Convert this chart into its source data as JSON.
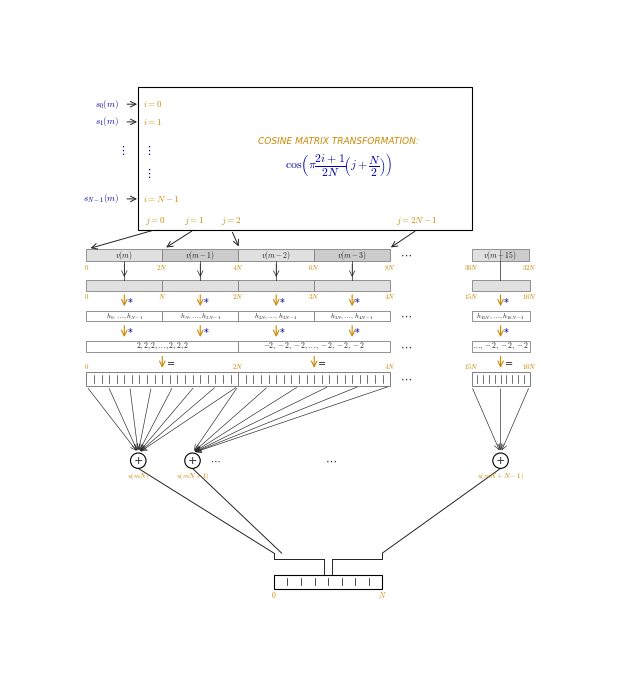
{
  "fig_width": 6.41,
  "fig_height": 6.95,
  "bg_color": "#ffffff",
  "cosine_title": "COSINE MATRIX TRANSFORMATION:",
  "orange_color": "#cc8800",
  "blue_color": "#0000aa",
  "dark_color": "#222222",
  "gray_light": "#e0e0e0",
  "gray_med": "#cccccc",
  "v_labels": [
    "$v(m)$",
    "$v(m-1)$",
    "$v(m-2)$",
    "$v(m-3)$",
    "$v(m-15)$"
  ],
  "h_labels": [
    "$h_0,\\ldots,h_{N-1}$",
    "$h_N,\\ldots,h_{2N-1}$",
    "$h_{2N},\\ldots,h_{3N-1}$",
    "$h_{3N},\\ldots,h_{4N-1}$",
    "$h_{15N},\\ldots,h_{16N-1}$"
  ],
  "twos_left": "$2,2,2,\\ldots,2,2,2$",
  "twos_right_left": "$-2,-2,-2,\\ldots,-2,-2,-2$",
  "twos_right2": "$\\ldots,-2,-2,-2$",
  "circ_labels": [
    "$u(mN)$",
    "$u(mN+1)$",
    "$u(mN+N-1)$"
  ]
}
